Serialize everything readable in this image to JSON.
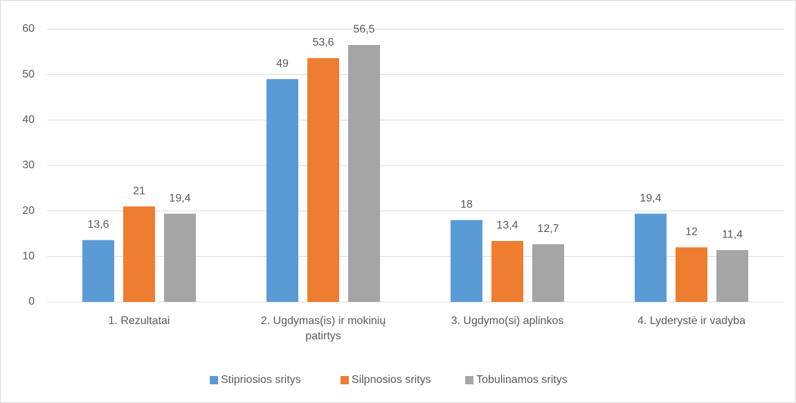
{
  "chart_data": {
    "type": "bar",
    "categories": [
      "1. Rezultatai",
      "2. Ugdymas(is) ir mokinių patirtys",
      "3. Ugdymo(si) aplinkos",
      "4. Lyderystė ir vadyba"
    ],
    "series": [
      {
        "name": "Stipriosios sritys",
        "color": "#5b9bd5",
        "values": [
          13.6,
          49,
          18,
          19.4
        ],
        "value_labels": [
          "13,6",
          "49",
          "18",
          "19,4"
        ]
      },
      {
        "name": "Silpnosios sritys",
        "color": "#ed7d31",
        "values": [
          21,
          53.6,
          13.4,
          12
        ],
        "value_labels": [
          "21",
          "53,6",
          "13,4",
          "12"
        ]
      },
      {
        "name": "Tobulinamos sritys",
        "color": "#a5a5a5",
        "values": [
          19.4,
          56.5,
          12.7,
          11.4
        ],
        "value_labels": [
          "19,4",
          "56,5",
          "12,7",
          "11,4"
        ]
      }
    ],
    "ylim": [
      0,
      60
    ],
    "yticks": [
      0,
      10,
      20,
      30,
      40,
      50,
      60
    ],
    "grid": true,
    "legend": "bottom"
  }
}
